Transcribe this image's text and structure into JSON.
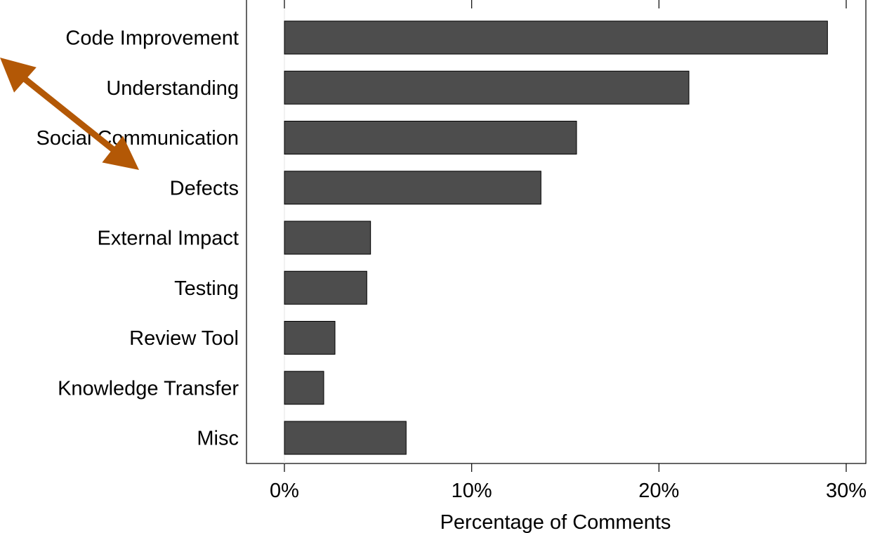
{
  "chart_data": {
    "type": "bar",
    "orientation": "horizontal",
    "categories": [
      "Code Improvement",
      "Understanding",
      "Social Communication",
      "Defects",
      "External Impact",
      "Testing",
      "Review Tool",
      "Knowledge Transfer",
      "Misc"
    ],
    "values": [
      29.0,
      21.6,
      15.6,
      13.7,
      4.6,
      4.4,
      2.7,
      2.1,
      6.5
    ],
    "xlabel": "Percentage of Comments",
    "ylabel": "",
    "xlim": [
      -2,
      30.8
    ],
    "xticks": [
      0,
      10,
      20,
      30
    ],
    "xtick_labels": [
      "0%",
      "10%",
      "20%",
      "30%"
    ],
    "grid": false,
    "bar_color": "#4d4d4d",
    "annotation": {
      "type": "double-headed-arrow",
      "color": "#b35806",
      "from": "Code Improvement",
      "to": "Defects"
    }
  }
}
